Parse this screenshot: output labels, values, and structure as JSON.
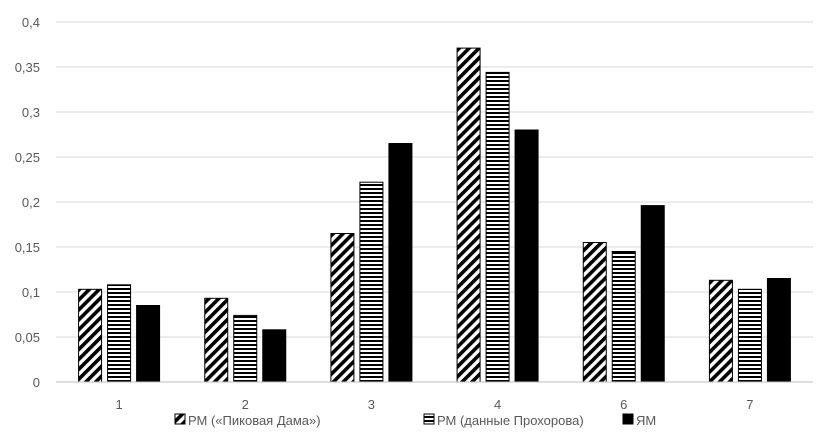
{
  "chart_data": {
    "type": "bar",
    "categories": [
      "1",
      "2",
      "3",
      "4",
      "6",
      "7"
    ],
    "series": [
      {
        "name": "РМ («Пиковая Дама»)",
        "values": [
          0.103,
          0.093,
          0.165,
          0.371,
          0.155,
          0.113
        ],
        "pattern": "diagonal"
      },
      {
        "name": "РМ (данные Прохорова)",
        "values": [
          0.108,
          0.074,
          0.222,
          0.344,
          0.145,
          0.103
        ],
        "pattern": "horizontal"
      },
      {
        "name": "ЯМ",
        "values": [
          0.085,
          0.058,
          0.265,
          0.28,
          0.196,
          0.115
        ],
        "pattern": "solid"
      }
    ],
    "y_ticks": [
      "0",
      "0,05",
      "0,1",
      "0,15",
      "0,2",
      "0,25",
      "0,3",
      "0,35",
      "0,4"
    ],
    "ylim": [
      0,
      0.4
    ],
    "grid": true,
    "legend_position": "bottom",
    "title": "",
    "xlabel": "",
    "ylabel": ""
  },
  "colors": {
    "bar_fill": "#000000",
    "gridline": "#d9d9d9",
    "axis": "#bfbfbf",
    "text": "#595959"
  }
}
